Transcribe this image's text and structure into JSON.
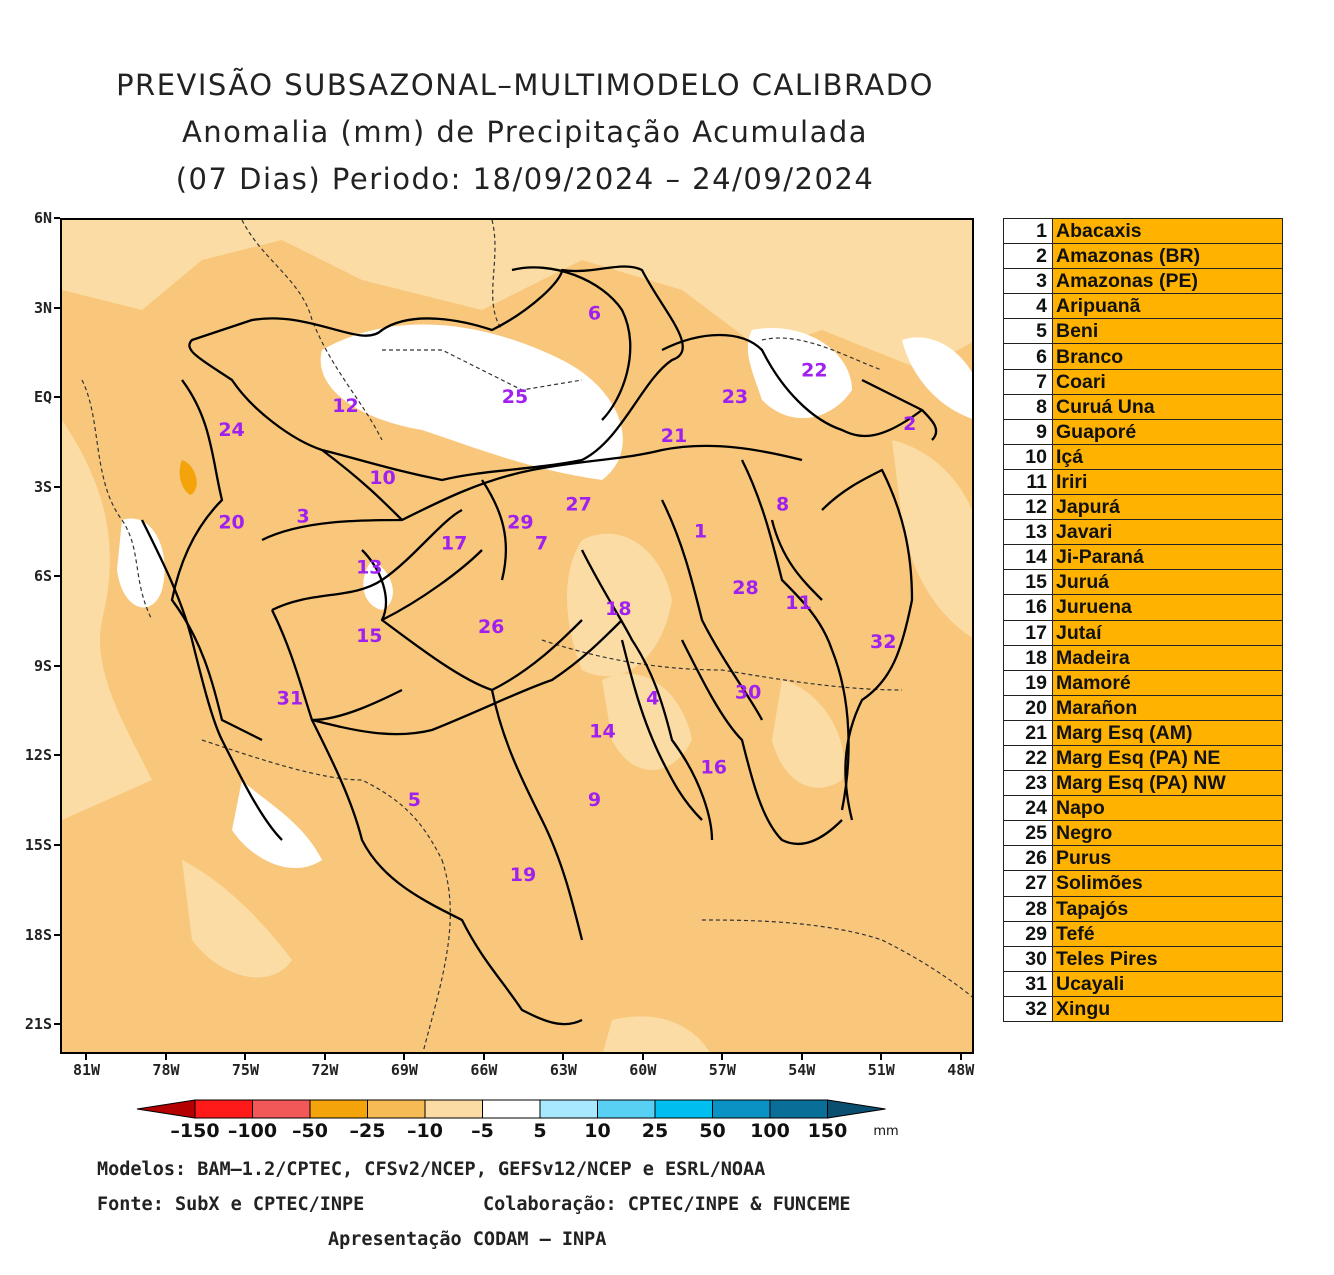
{
  "title": {
    "line1": "PREVISÃO SUBSAZONAL–MULTIMODELO CALIBRADO",
    "line2": "Anomalia (mm) de Precipitação Acumulada",
    "line3": "(07 Dias) Periodo: 18/09/2024 – 24/09/2024"
  },
  "map": {
    "lat_labels": [
      "6N",
      "3N",
      "EQ",
      "3S",
      "6S",
      "9S",
      "12S",
      "15S",
      "18S",
      "21S"
    ],
    "lon_labels": [
      "81W",
      "78W",
      "75W",
      "72W",
      "69W",
      "66W",
      "63W",
      "60W",
      "57W",
      "54W",
      "51W",
      "48W"
    ],
    "lat_range": [
      -22,
      6
    ],
    "lon_range": [
      -82,
      -47.5
    ],
    "region_labels": [
      {
        "id": "1",
        "lon": -57.9,
        "lat": -4.4
      },
      {
        "id": "2",
        "lon": -50.0,
        "lat": -0.8
      },
      {
        "id": "3",
        "lon": -72.9,
        "lat": -3.9
      },
      {
        "id": "4",
        "lon": -59.7,
        "lat": -10.0
      },
      {
        "id": "5",
        "lon": -68.7,
        "lat": -13.4
      },
      {
        "id": "6",
        "lon": -61.9,
        "lat": 2.9
      },
      {
        "id": "7",
        "lon": -63.9,
        "lat": -4.8
      },
      {
        "id": "8",
        "lon": -54.8,
        "lat": -3.5
      },
      {
        "id": "9",
        "lon": -61.9,
        "lat": -13.4
      },
      {
        "id": "10",
        "lon": -69.9,
        "lat": -2.6
      },
      {
        "id": "11",
        "lon": -54.2,
        "lat": -6.8
      },
      {
        "id": "12",
        "lon": -71.3,
        "lat": -0.2
      },
      {
        "id": "13",
        "lon": -70.4,
        "lat": -5.6
      },
      {
        "id": "14",
        "lon": -61.6,
        "lat": -11.1
      },
      {
        "id": "15",
        "lon": -70.4,
        "lat": -7.9
      },
      {
        "id": "16",
        "lon": -57.4,
        "lat": -12.3
      },
      {
        "id": "17",
        "lon": -67.2,
        "lat": -4.8
      },
      {
        "id": "18",
        "lon": -61.0,
        "lat": -7.0
      },
      {
        "id": "19",
        "lon": -64.6,
        "lat": -15.9
      },
      {
        "id": "20",
        "lon": -75.6,
        "lat": -4.1
      },
      {
        "id": "21",
        "lon": -58.9,
        "lat": -1.2
      },
      {
        "id": "22",
        "lon": -53.6,
        "lat": 1.0
      },
      {
        "id": "23",
        "lon": -56.6,
        "lat": 0.1
      },
      {
        "id": "24",
        "lon": -75.6,
        "lat": -1.0
      },
      {
        "id": "25",
        "lon": -64.9,
        "lat": 0.1
      },
      {
        "id": "26",
        "lon": -65.8,
        "lat": -7.6
      },
      {
        "id": "27",
        "lon": -62.5,
        "lat": -3.5
      },
      {
        "id": "28",
        "lon": -56.2,
        "lat": -6.3
      },
      {
        "id": "29",
        "lon": -64.7,
        "lat": -4.1
      },
      {
        "id": "30",
        "lon": -56.1,
        "lat": -9.8
      },
      {
        "id": "31",
        "lon": -73.4,
        "lat": -10.0
      },
      {
        "id": "32",
        "lon": -51.0,
        "lat": -8.1
      }
    ]
  },
  "legend_table": [
    {
      "num": "1",
      "name": "Abacaxis"
    },
    {
      "num": "2",
      "name": "Amazonas (BR)"
    },
    {
      "num": "3",
      "name": "Amazonas (PE)"
    },
    {
      "num": "4",
      "name": "Aripuanã"
    },
    {
      "num": "5",
      "name": "Beni"
    },
    {
      "num": "6",
      "name": "Branco"
    },
    {
      "num": "7",
      "name": "Coari"
    },
    {
      "num": "8",
      "name": "Curuá Una"
    },
    {
      "num": "9",
      "name": "Guaporé"
    },
    {
      "num": "10",
      "name": "Içá"
    },
    {
      "num": "11",
      "name": "Iriri"
    },
    {
      "num": "12",
      "name": "Japurá"
    },
    {
      "num": "13",
      "name": "Javari"
    },
    {
      "num": "14",
      "name": "Ji-Paraná"
    },
    {
      "num": "15",
      "name": "Juruá"
    },
    {
      "num": "16",
      "name": "Juruena"
    },
    {
      "num": "17",
      "name": "Jutaí"
    },
    {
      "num": "18",
      "name": "Madeira"
    },
    {
      "num": "19",
      "name": "Mamoré"
    },
    {
      "num": "20",
      "name": "Marañon"
    },
    {
      "num": "21",
      "name": "Marg Esq (AM)"
    },
    {
      "num": "22",
      "name": "Marg Esq (PA) NE"
    },
    {
      "num": "23",
      "name": "Marg Esq (PA) NW"
    },
    {
      "num": "24",
      "name": "Napo"
    },
    {
      "num": "25",
      "name": "Negro"
    },
    {
      "num": "26",
      "name": "Purus"
    },
    {
      "num": "27",
      "name": "Solimões"
    },
    {
      "num": "28",
      "name": "Tapajós"
    },
    {
      "num": "29",
      "name": "Tefé"
    },
    {
      "num": "30",
      "name": "Teles Pires"
    },
    {
      "num": "31",
      "name": "Ucayali"
    },
    {
      "num": "32",
      "name": "Xingu"
    }
  ],
  "colorbar": {
    "labels": [
      "–150",
      "–100",
      "–50",
      "–25",
      "–10",
      "–5",
      "5",
      "10",
      "25",
      "50",
      "100",
      "150"
    ],
    "unit": "mm",
    "colors": [
      "#b40000",
      "#ff1a1a",
      "#f25858",
      "#f5a30a",
      "#f7bb55",
      "#fbdca4",
      "#ffffff",
      "#a8e9ff",
      "#58d0f4",
      "#00bff0",
      "#0a92c4",
      "#0a6f98",
      "#0a4f70"
    ]
  },
  "footer": {
    "models": "Modelos: BAM–1.2/CPTEC, CFSv2/NCEP, GEFSv12/NCEP e ESRL/NOAA",
    "source": "Fonte: SubX e CPTEC/INPE",
    "collab": "Colaboração: CPTEC/INPE & FUNCEME",
    "presentation": "Apresentação CODAM – INPA"
  }
}
